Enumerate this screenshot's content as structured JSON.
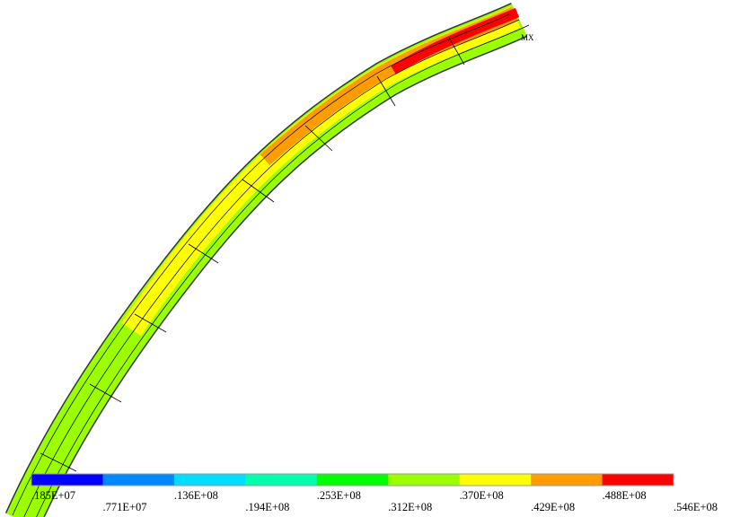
{
  "max_marker": "MX",
  "legend": {
    "labels": [
      ".185E+07",
      ".771E+07",
      ".136E+08",
      ".194E+08",
      ".253E+08",
      ".312E+08",
      ".370E+08",
      ".429E+08",
      ".488E+08",
      ".546E+08"
    ],
    "colors": [
      "#0000ff",
      "#0088ff",
      "#00dcff",
      "#00ffaa",
      "#00ff00",
      "#9cff00",
      "#ffff00",
      "#ff9c00",
      "#ff0000"
    ]
  }
}
